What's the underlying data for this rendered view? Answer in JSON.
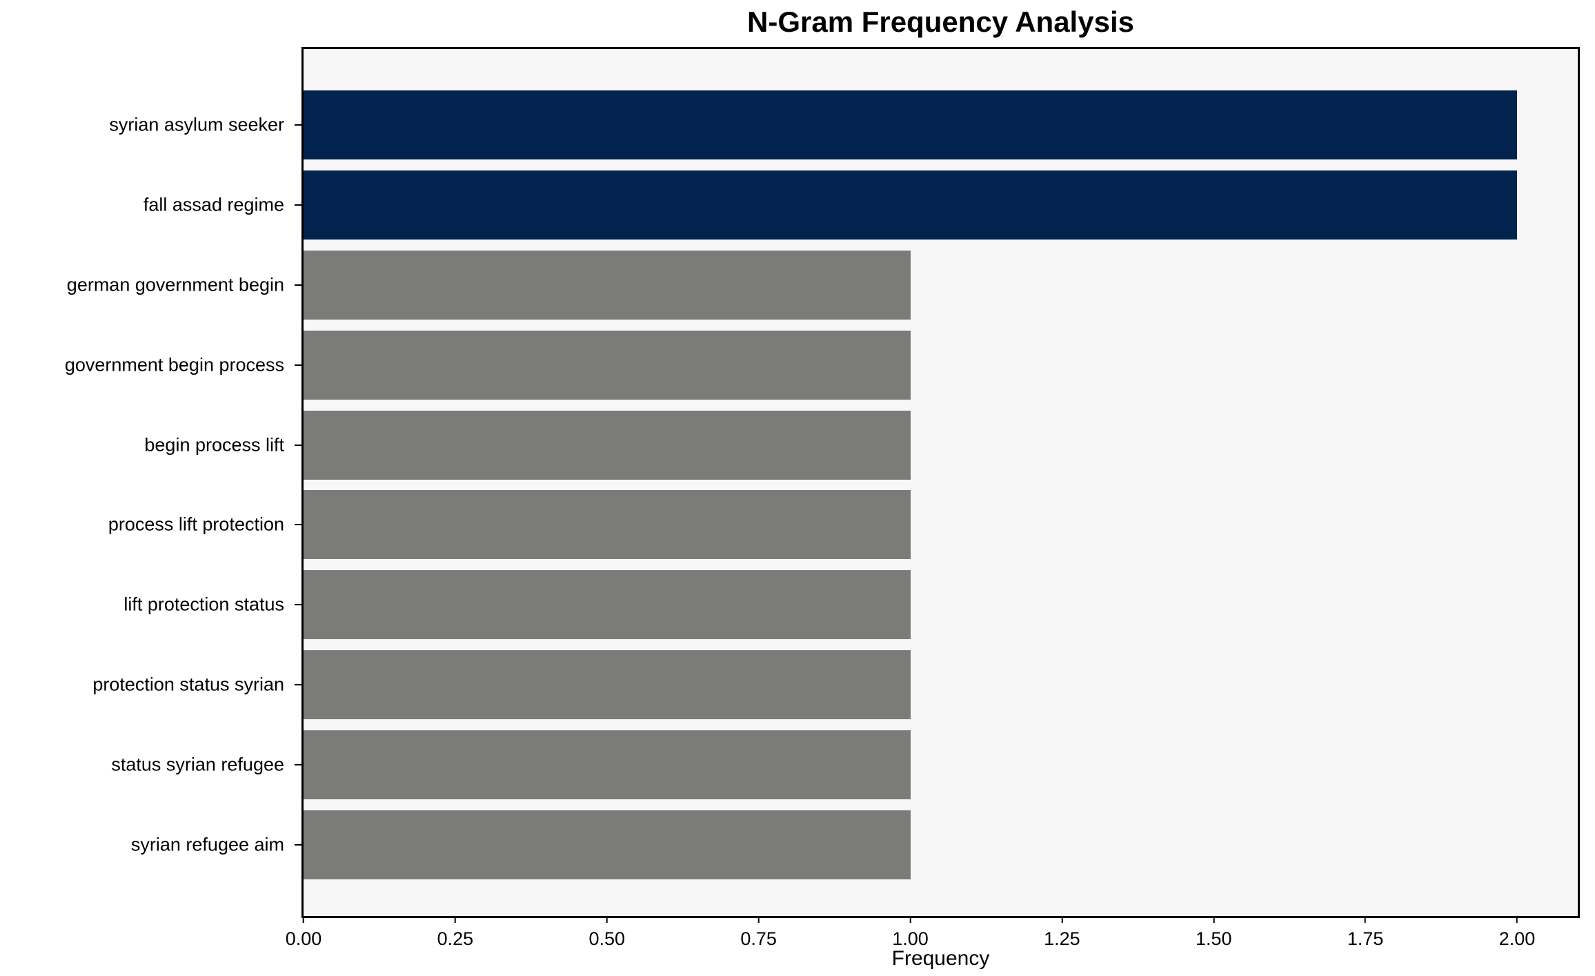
{
  "chart_data": {
    "type": "bar",
    "orientation": "horizontal",
    "title": "N-Gram Frequency Analysis",
    "xlabel": "Frequency",
    "ylabel": "",
    "categories": [
      "syrian asylum seeker",
      "fall assad regime",
      "german government begin",
      "government begin process",
      "begin process lift",
      "process lift protection",
      "lift protection status",
      "protection status syrian",
      "status syrian refugee",
      "syrian refugee aim"
    ],
    "values": [
      2,
      2,
      1,
      1,
      1,
      1,
      1,
      1,
      1,
      1
    ],
    "bar_colors": [
      "#01234d",
      "#01234d",
      "#7b7b78",
      "#7b7b78",
      "#7b7b78",
      "#7b7b78",
      "#7b7b78",
      "#7b7b78",
      "#7b7b78",
      "#7b7b78"
    ],
    "xlim": [
      0,
      2.1
    ],
    "xtick_labels": [
      "0.00",
      "0.25",
      "0.50",
      "0.75",
      "1.00",
      "1.25",
      "1.50",
      "1.75",
      "2.00"
    ],
    "grid": "off",
    "legend": "none",
    "colors": {
      "highlight_bar": "#01234d",
      "default_bar": "#7b7b78",
      "plot_background": "#f7f7f7",
      "figure_background": "#ffffff",
      "spine": "#000000",
      "text": "#000000"
    }
  }
}
